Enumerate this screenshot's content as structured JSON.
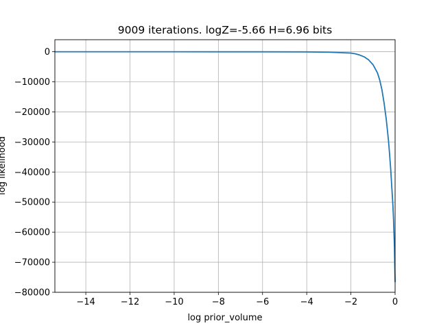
{
  "chart_data": {
    "type": "line",
    "title": "9009 iterations. logZ=-5.66 H=6.96 bits",
    "xlabel": "log prior_volume",
    "ylabel": "log likelihood",
    "xlim": [
      -15.4,
      0
    ],
    "ylim": [
      -80000,
      4000
    ],
    "grid": true,
    "xticks": [
      -14,
      -12,
      -10,
      -8,
      -6,
      -4,
      -2,
      0
    ],
    "xtick_labels": [
      "−14",
      "−12",
      "−10",
      "−8",
      "−6",
      "−4",
      "−2",
      "0"
    ],
    "yticks": [
      0,
      -10000,
      -20000,
      -30000,
      -40000,
      -50000,
      -60000,
      -70000,
      -80000
    ],
    "ytick_labels": [
      "0",
      "−10000",
      "−20000",
      "−30000",
      "−40000",
      "−50000",
      "−60000",
      "−70000",
      "−80000"
    ],
    "series": [
      {
        "color": "#1f77b4",
        "x": [
          -15.4,
          -14,
          -12,
          -10,
          -8,
          -6,
          -4,
          -3,
          -2.5,
          -2,
          -1.8,
          -1.6,
          -1.4,
          -1.2,
          -1.0,
          -0.8,
          -0.7,
          -0.6,
          -0.5,
          -0.4,
          -0.3,
          -0.25,
          -0.2,
          -0.15,
          -0.1,
          -0.07,
          -0.05,
          -0.03,
          -0.02,
          -0.01,
          0
        ],
        "y": [
          -20,
          -20,
          -20,
          -20,
          -25,
          -30,
          -60,
          -150,
          -300,
          -450,
          -700,
          -1100,
          -1700,
          -2700,
          -4300,
          -7000,
          -9300,
          -12500,
          -17000,
          -22500,
          -29500,
          -34000,
          -39000,
          -45000,
          -51000,
          -56000,
          -60500,
          -65000,
          -69000,
          -73000,
          -76500
        ]
      }
    ]
  }
}
